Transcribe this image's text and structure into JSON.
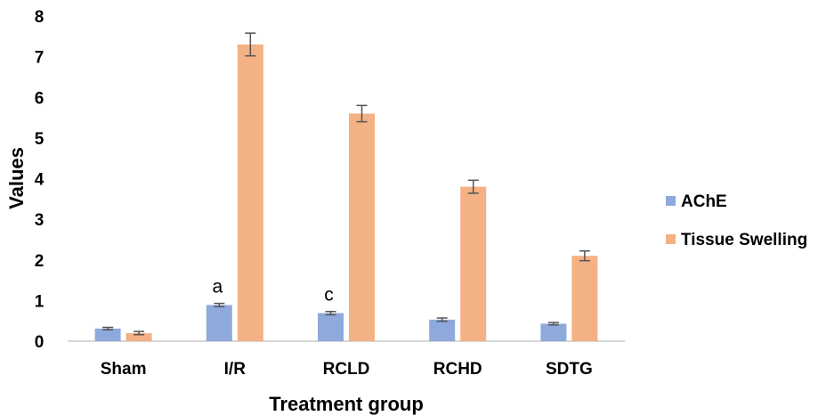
{
  "chart_data": {
    "type": "bar",
    "categories": [
      "Sham",
      "I/R",
      "RCLD",
      "RCHD",
      "SDTG"
    ],
    "series": [
      {
        "name": "AChE",
        "color": "#8EA9DB",
        "values": [
          0.31,
          0.89,
          0.69,
          0.53,
          0.43
        ],
        "errors": [
          0.03,
          0.04,
          0.04,
          0.04,
          0.03
        ]
      },
      {
        "name": "Tissue Swelling",
        "color": "#F4B183",
        "values": [
          0.2,
          7.3,
          5.6,
          3.8,
          2.1
        ],
        "errors": [
          0.04,
          0.28,
          0.2,
          0.16,
          0.12
        ]
      }
    ],
    "annotations": [
      {
        "category": "I/R",
        "series": "AChE",
        "text": "a"
      },
      {
        "category": "RCLD",
        "series": "AChE",
        "text": "c"
      }
    ],
    "xlabel": "Treatment group",
    "ylabel": "Values",
    "ylim": [
      0,
      8
    ],
    "yticks": [
      "0",
      "1",
      "2",
      "3",
      "4",
      "5",
      "6",
      "7",
      "8"
    ],
    "grid": false,
    "legend": "right"
  }
}
